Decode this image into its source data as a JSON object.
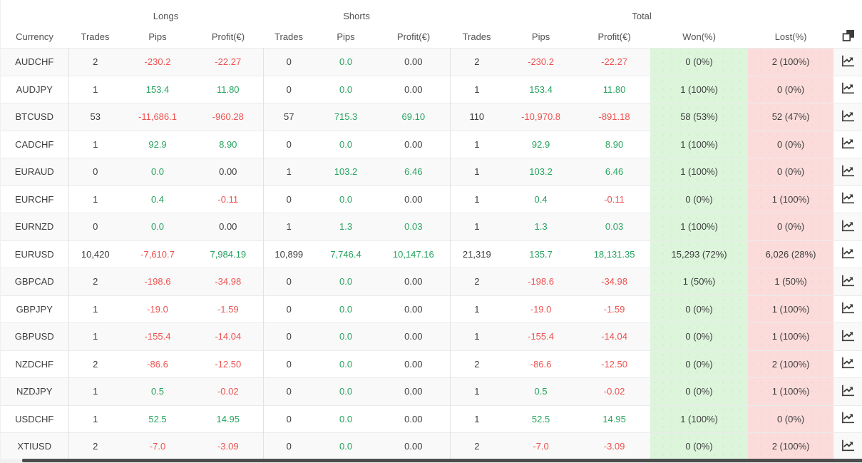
{
  "header": {
    "groups": [
      {
        "label": "Longs"
      },
      {
        "label": "Shorts"
      },
      {
        "label": "Total"
      }
    ],
    "columns": [
      "Currency",
      "Trades",
      "Pips",
      "Profit(€)",
      "Trades",
      "Pips",
      "Profit(€)",
      "Trades",
      "Pips",
      "Profit(€)",
      "Won(%)",
      "Lost(%)"
    ]
  },
  "icons": {
    "header": "copy-icon",
    "row": "line-chart-icon"
  },
  "colors": {
    "green": "#27a35f",
    "red": "#ef5350",
    "won_bg": "#dcf5db",
    "lost_bg": "#fbdcda",
    "icon_dark": "#3a3a3a"
  },
  "rows": [
    {
      "currency": "AUDCHF",
      "longs": {
        "trades": "2",
        "pips": "-230.2",
        "profit": "-22.27"
      },
      "shorts": {
        "trades": "0",
        "pips": "0.0",
        "profit": "0.00"
      },
      "total": {
        "trades": "2",
        "pips": "-230.2",
        "profit": "-22.27"
      },
      "won": "0 (0%)",
      "lost": "2 (100%)"
    },
    {
      "currency": "AUDJPY",
      "longs": {
        "trades": "1",
        "pips": "153.4",
        "profit": "11.80"
      },
      "shorts": {
        "trades": "0",
        "pips": "0.0",
        "profit": "0.00"
      },
      "total": {
        "trades": "1",
        "pips": "153.4",
        "profit": "11.80"
      },
      "won": "1 (100%)",
      "lost": "0 (0%)"
    },
    {
      "currency": "BTCUSD",
      "longs": {
        "trades": "53",
        "pips": "-11,686.1",
        "profit": "-960.28"
      },
      "shorts": {
        "trades": "57",
        "pips": "715.3",
        "profit": "69.10"
      },
      "total": {
        "trades": "110",
        "pips": "-10,970.8",
        "profit": "-891.18"
      },
      "won": "58 (53%)",
      "lost": "52 (47%)"
    },
    {
      "currency": "CADCHF",
      "longs": {
        "trades": "1",
        "pips": "92.9",
        "profit": "8.90"
      },
      "shorts": {
        "trades": "0",
        "pips": "0.0",
        "profit": "0.00"
      },
      "total": {
        "trades": "1",
        "pips": "92.9",
        "profit": "8.90"
      },
      "won": "1 (100%)",
      "lost": "0 (0%)"
    },
    {
      "currency": "EURAUD",
      "longs": {
        "trades": "0",
        "pips": "0.0",
        "profit": "0.00"
      },
      "shorts": {
        "trades": "1",
        "pips": "103.2",
        "profit": "6.46"
      },
      "total": {
        "trades": "1",
        "pips": "103.2",
        "profit": "6.46"
      },
      "won": "1 (100%)",
      "lost": "0 (0%)"
    },
    {
      "currency": "EURCHF",
      "longs": {
        "trades": "1",
        "pips": "0.4",
        "profit": "-0.11"
      },
      "shorts": {
        "trades": "0",
        "pips": "0.0",
        "profit": "0.00"
      },
      "total": {
        "trades": "1",
        "pips": "0.4",
        "profit": "-0.11"
      },
      "won": "0 (0%)",
      "lost": "1 (100%)"
    },
    {
      "currency": "EURNZD",
      "longs": {
        "trades": "0",
        "pips": "0.0",
        "profit": "0.00"
      },
      "shorts": {
        "trades": "1",
        "pips": "1.3",
        "profit": "0.03"
      },
      "total": {
        "trades": "1",
        "pips": "1.3",
        "profit": "0.03"
      },
      "won": "1 (100%)",
      "lost": "0 (0%)"
    },
    {
      "currency": "EURUSD",
      "longs": {
        "trades": "10,420",
        "pips": "-7,610.7",
        "profit": "7,984.19"
      },
      "shorts": {
        "trades": "10,899",
        "pips": "7,746.4",
        "profit": "10,147.16"
      },
      "total": {
        "trades": "21,319",
        "pips": "135.7",
        "profit": "18,131.35"
      },
      "won": "15,293 (72%)",
      "lost": "6,026 (28%)"
    },
    {
      "currency": "GBPCAD",
      "longs": {
        "trades": "2",
        "pips": "-198.6",
        "profit": "-34.98"
      },
      "shorts": {
        "trades": "0",
        "pips": "0.0",
        "profit": "0.00"
      },
      "total": {
        "trades": "2",
        "pips": "-198.6",
        "profit": "-34.98"
      },
      "won": "1 (50%)",
      "lost": "1 (50%)"
    },
    {
      "currency": "GBPJPY",
      "longs": {
        "trades": "1",
        "pips": "-19.0",
        "profit": "-1.59"
      },
      "shorts": {
        "trades": "0",
        "pips": "0.0",
        "profit": "0.00"
      },
      "total": {
        "trades": "1",
        "pips": "-19.0",
        "profit": "-1.59"
      },
      "won": "0 (0%)",
      "lost": "1 (100%)"
    },
    {
      "currency": "GBPUSD",
      "longs": {
        "trades": "1",
        "pips": "-155.4",
        "profit": "-14.04"
      },
      "shorts": {
        "trades": "0",
        "pips": "0.0",
        "profit": "0.00"
      },
      "total": {
        "trades": "1",
        "pips": "-155.4",
        "profit": "-14.04"
      },
      "won": "0 (0%)",
      "lost": "1 (100%)"
    },
    {
      "currency": "NZDCHF",
      "longs": {
        "trades": "2",
        "pips": "-86.6",
        "profit": "-12.50"
      },
      "shorts": {
        "trades": "0",
        "pips": "0.0",
        "profit": "0.00"
      },
      "total": {
        "trades": "2",
        "pips": "-86.6",
        "profit": "-12.50"
      },
      "won": "0 (0%)",
      "lost": "2 (100%)"
    },
    {
      "currency": "NZDJPY",
      "longs": {
        "trades": "1",
        "pips": "0.5",
        "profit": "-0.02"
      },
      "shorts": {
        "trades": "0",
        "pips": "0.0",
        "profit": "0.00"
      },
      "total": {
        "trades": "1",
        "pips": "0.5",
        "profit": "-0.02"
      },
      "won": "0 (0%)",
      "lost": "1 (100%)"
    },
    {
      "currency": "USDCHF",
      "longs": {
        "trades": "1",
        "pips": "52.5",
        "profit": "14.95"
      },
      "shorts": {
        "trades": "0",
        "pips": "0.0",
        "profit": "0.00"
      },
      "total": {
        "trades": "1",
        "pips": "52.5",
        "profit": "14.95"
      },
      "won": "1 (100%)",
      "lost": "0 (0%)"
    },
    {
      "currency": "XTIUSD",
      "longs": {
        "trades": "2",
        "pips": "-7.0",
        "profit": "-3.09"
      },
      "shorts": {
        "trades": "0",
        "pips": "0.0",
        "profit": "0.00"
      },
      "total": {
        "trades": "2",
        "pips": "-7.0",
        "profit": "-3.09"
      },
      "won": "0 (0%)",
      "lost": "2 (100%)"
    }
  ]
}
